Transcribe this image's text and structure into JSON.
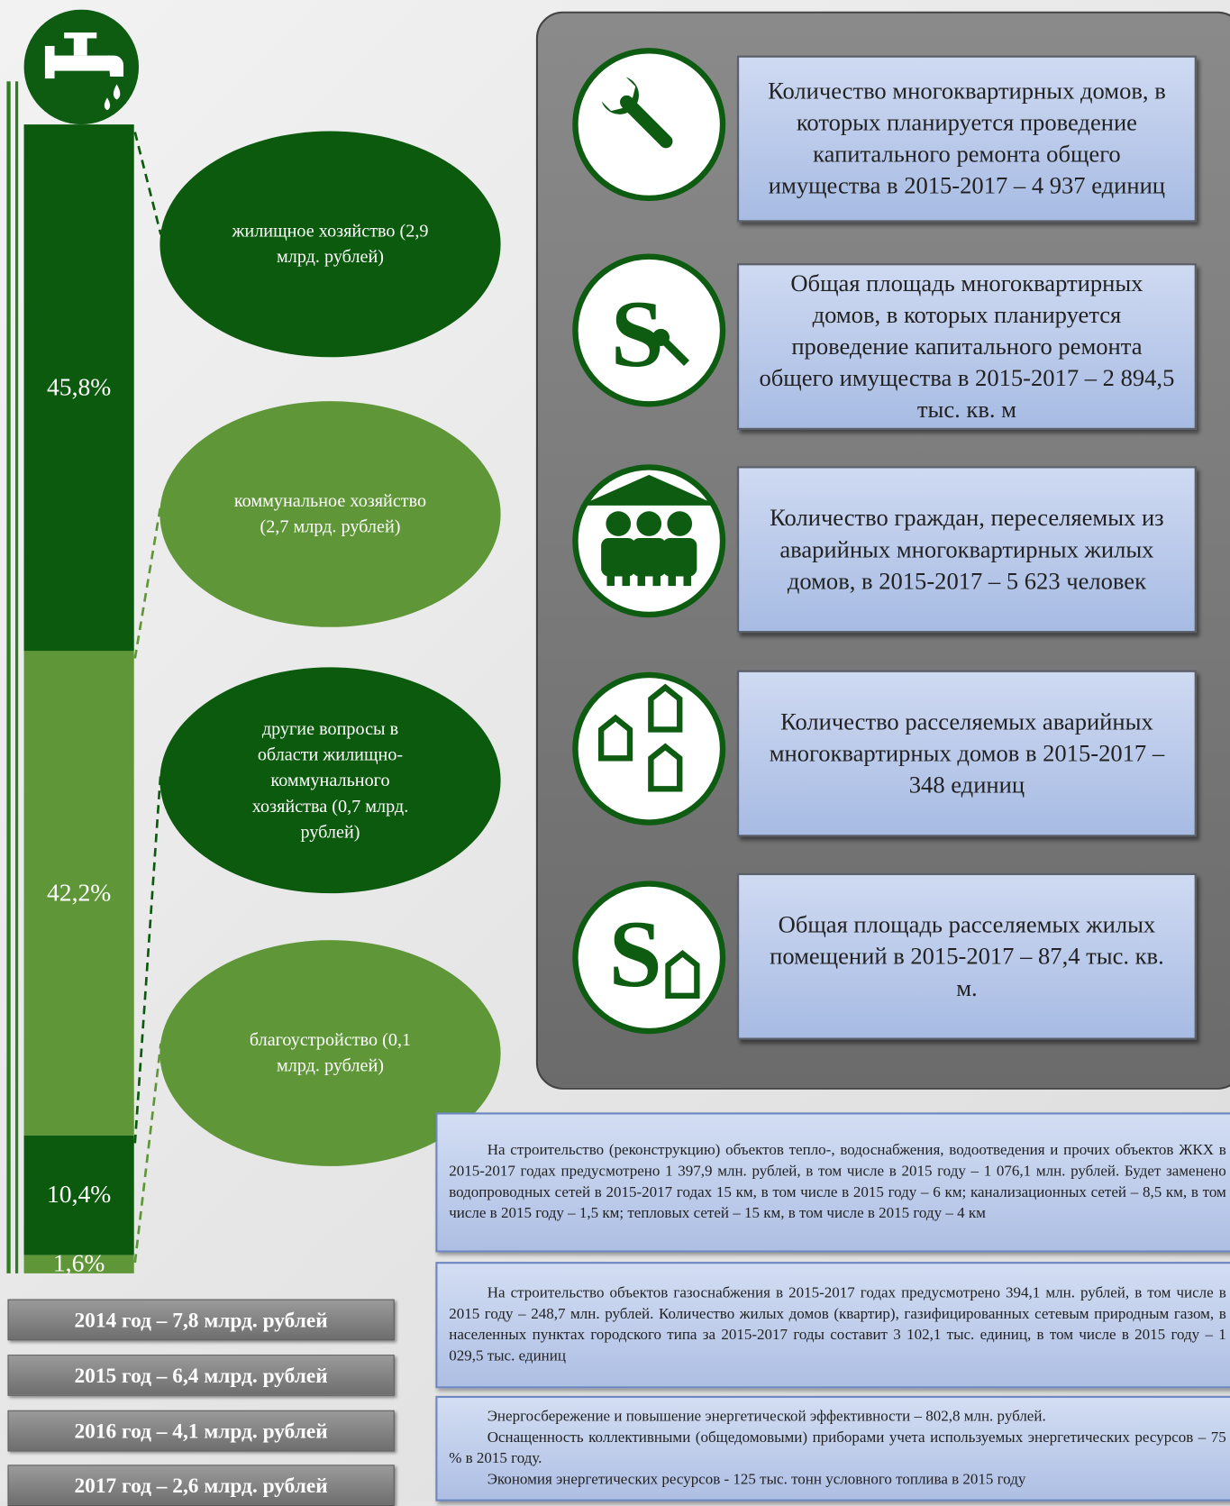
{
  "chart_data": {
    "type": "stacked-bar",
    "categories": [
      null
    ],
    "series": [
      {
        "name": "жилищное хозяйство (2,9 млрд. рублей)",
        "color": "#0b5a0d",
        "values": [
          45.8
        ],
        "value_labels": [
          "45,8%"
        ]
      },
      {
        "name": "коммунальное хозяйство (2,7 млрд. рублей)",
        "color": "#5f9638",
        "values": [
          42.2
        ],
        "value_labels": [
          "42,2%"
        ]
      },
      {
        "name": "другие вопросы в области жилищно-коммунального хозяйства (0,7 млрд. рублей)",
        "color": "#0b5a0d",
        "values": [
          10.4
        ],
        "value_labels": [
          "10,4%"
        ]
      },
      {
        "name": "благоустройство (0,1 млрд. рублей)",
        "color": "#5f9638",
        "values": [
          1.6
        ],
        "value_labels": [
          "1,6%"
        ]
      }
    ]
  },
  "indicators": [
    "Количество многоквартирных домов, в которых планируется проведение капитального ремонта общего имущества в 2015-2017 – 4 937 единиц",
    "Общая площадь многоквартирных домов, в которых планируется проведение капитального ремонта общего имущества в 2015-2017 – 2 894,5 тыс. кв. м",
    "Количество граждан, переселяемых из аварийных многоквартирных жилых домов, в 2015-2017 – 5 623 человек",
    "Количество расселяемых аварийных многоквартирных домов в 2015-2017 – 348 единиц",
    "Общая площадь расселяемых жилых помещений в 2015-2017 – 87,4 тыс. кв. м."
  ],
  "notes": [
    [
      "На строительство (реконструкцию) объектов тепло-, водоснабжения, водоотведения и прочих объектов ЖКХ в 2015-2017 годах предусмотрено 1 397,9 млн. рублей, в том числе в 2015 году – 1 076,1 млн. рублей. Будет заменено водопроводных сетей в 2015-2017 годах 15 км, в том числе в 2015 году – 6 км; канализационных сетей – 8,5 км, в том числе в 2015 году – 1,5 км; тепловых сетей – 15 км, в том числе в 2015 году – 4 км"
    ],
    [
      "На строительство объектов газоснабжения в 2015-2017 годах предусмотрено 394,1 млн. рублей, в том числе в 2015 году – 248,7 млн. рублей. Количество жилых домов (квартир), газифицированных сетевым природным газом, в населенных пунктах городского типа за 2015-2017 годы составит 3 102,1 тыс. единиц, в том числе в 2015 году – 1 029,5 тыс. единиц"
    ],
    [
      "Энергосбережение и повышение энергетической эффективности – 802,8 млн. рублей.",
      "Оснащенность коллективными (общедомовыми) приборами учета используемых энергетических ресурсов – 75 % в 2015 году.",
      "Экономия энергетических ресурсов - 125 тыс. тонн условного топлива в 2015 году"
    ]
  ],
  "years": [
    "2014 год – 7,8 млрд. рублей",
    "2015 год – 6,4 млрд. рублей",
    "2016 год – 4,1 млрд. рублей",
    "2017 год – 2,6 млрд. рублей"
  ]
}
